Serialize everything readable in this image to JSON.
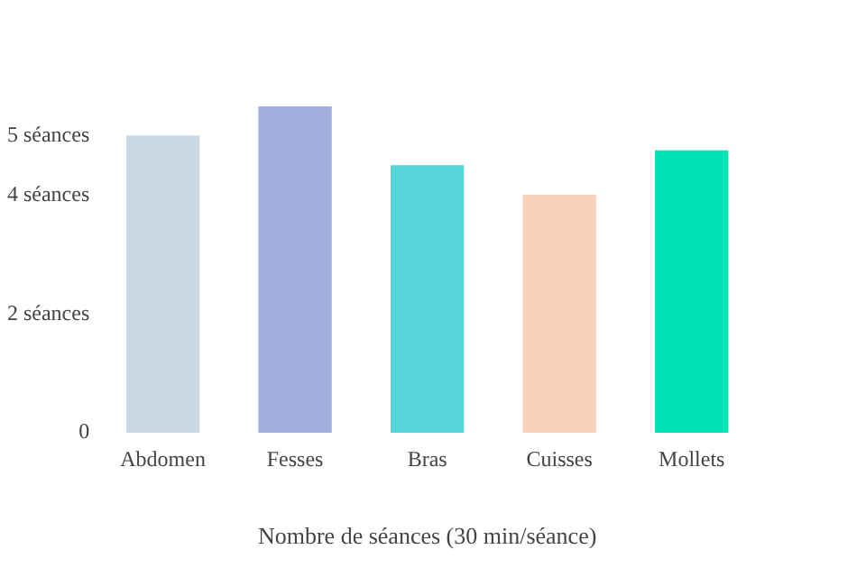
{
  "chart_data": {
    "type": "bar",
    "xlabel": "Nombre de séances (30 min/séance)",
    "categories": [
      "Abdomen",
      "Fesses",
      "Bras",
      "Cuisses",
      "Mollets"
    ],
    "values": [
      5,
      5.5,
      4.5,
      4,
      4.75
    ],
    "colors": [
      "#cbd8e5",
      "#a3aee0",
      "#56d5db",
      "#f9d1b8",
      "#00e3b5"
    ],
    "ylim": [
      0,
      5.5
    ],
    "yticks": [
      0,
      {
        "value": 2,
        "label": "2 séances"
      },
      {
        "value": 4,
        "label": "4 séances"
      },
      {
        "value": 5,
        "label": "5 séances"
      }
    ],
    "grid": false,
    "legend": false
  }
}
